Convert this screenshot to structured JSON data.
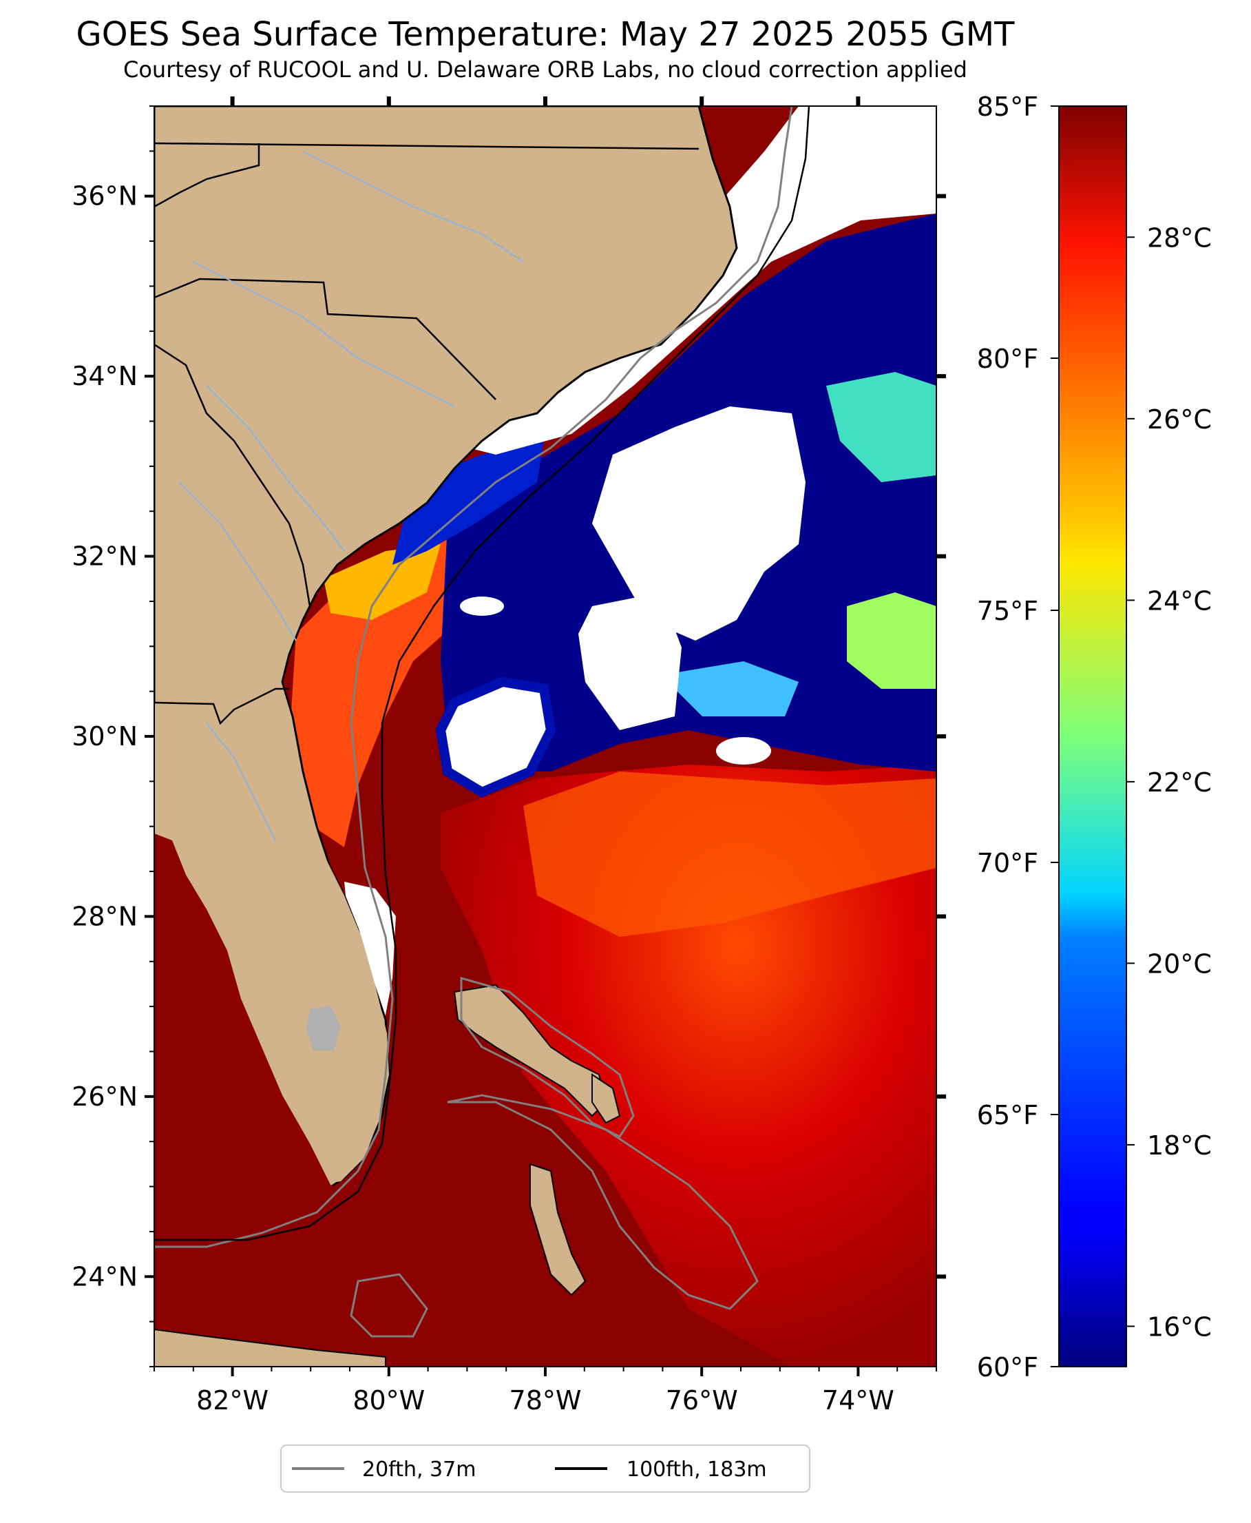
{
  "title": "GOES Sea Surface Temperature: May 27 2025 2055 GMT",
  "subtitle": "Courtesy of RUCOOL and U. Delaware ORB Labs, no cloud correction applied",
  "map": {
    "lon_range": [
      -83.0,
      -73.0
    ],
    "lat_range": [
      23.0,
      37.0
    ],
    "lat_ticks": [
      "24°N",
      "26°N",
      "28°N",
      "30°N",
      "32°N",
      "34°N",
      "36°N"
    ],
    "lat_values": [
      24,
      26,
      28,
      30,
      32,
      34,
      36
    ],
    "lon_ticks": [
      "82°W",
      "80°W",
      "78°W",
      "76°W",
      "74°W"
    ],
    "lon_values": [
      -82,
      -80,
      -78,
      -76,
      -74
    ],
    "colors": {
      "land": "#d2b48c",
      "cloud": "#ffffff",
      "cold": "#00008b",
      "warm": "#7f0000"
    }
  },
  "colorbar": {
    "celsius_ticks": [
      "16°C",
      "18°C",
      "20°C",
      "22°C",
      "24°C",
      "26°C",
      "28°C"
    ],
    "celsius_values": [
      16,
      18,
      20,
      22,
      24,
      26,
      28
    ],
    "fahrenheit_ticks": [
      "60°F",
      "65°F",
      "70°F",
      "75°F",
      "80°F",
      "85°F"
    ],
    "fahrenheit_values": [
      60,
      65,
      70,
      75,
      80,
      85
    ],
    "colormap": "jet",
    "range_f": [
      60,
      85
    ]
  },
  "legend": {
    "items": [
      {
        "label": "20fth, 37m",
        "color": "#808080"
      },
      {
        "label": "100fth, 183m",
        "color": "#000000"
      }
    ]
  }
}
